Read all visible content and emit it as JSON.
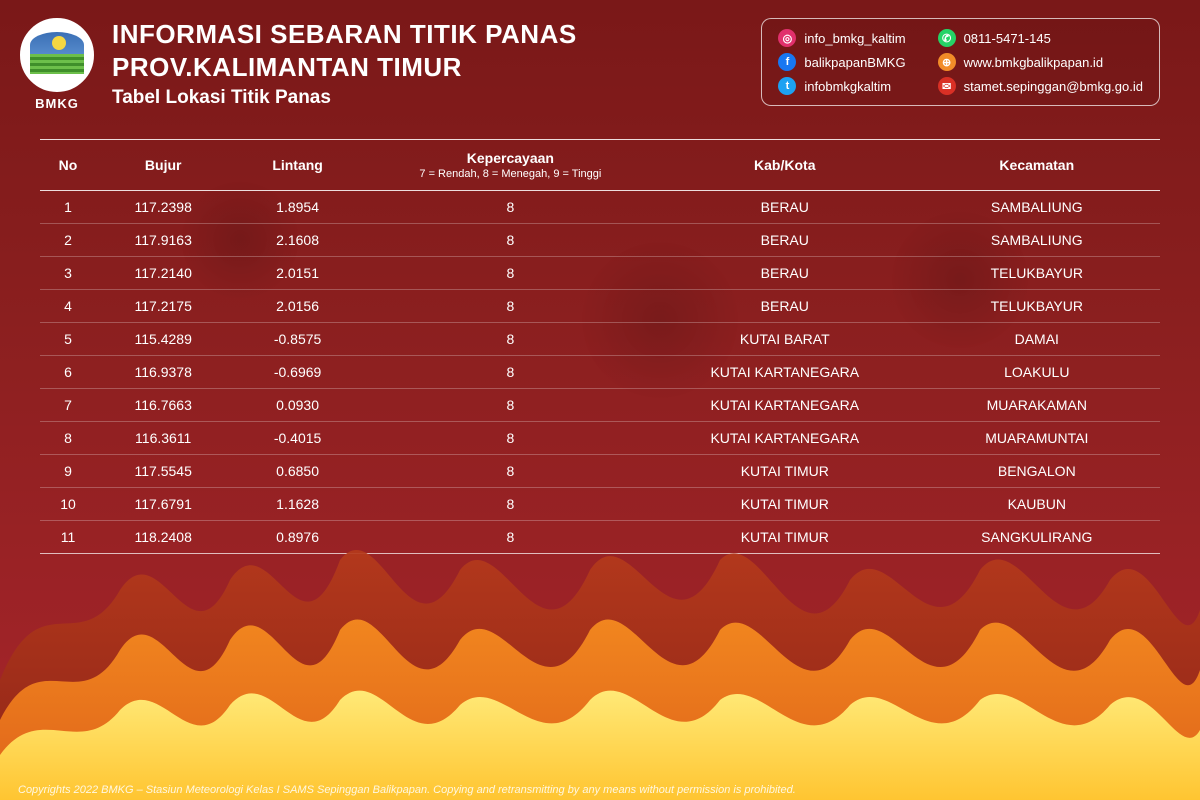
{
  "colors": {
    "bg_top": "#7a1818",
    "bg_mid": "#8b1f1f",
    "bg_bot": "#a8252b",
    "text": "#ffffff",
    "rule": "rgba(255,255,255,0.85)",
    "row_rule": "rgba(255,255,255,0.25)",
    "instagram": "#e1306c",
    "facebook": "#1877f2",
    "twitter": "#1da1f2",
    "whatsapp": "#25d366",
    "web": "#f28c28",
    "email": "#d93025",
    "fire_outer": "#b53a1b",
    "fire_mid": "#f58a1f",
    "fire_inner": "#ffd84a"
  },
  "logo": {
    "org": "BMKG"
  },
  "header": {
    "title_l1": "INFORMASI SEBARAN TITIK PANAS",
    "title_l2": "PROV.KALIMANTAN TIMUR",
    "subtitle": "Tabel Lokasi Titik Panas"
  },
  "contacts": [
    {
      "icon": "instagram",
      "label": "info_bmkg_kaltim"
    },
    {
      "icon": "whatsapp",
      "label": "0811-5471-145"
    },
    {
      "icon": "facebook",
      "label": "balikpapanBMKG"
    },
    {
      "icon": "web",
      "label": "www.bmkgbalikpapan.id"
    },
    {
      "icon": "twitter",
      "label": "infobmkgkaltim"
    },
    {
      "icon": "email",
      "label": "stamet.sepinggan@bmkg.go.id"
    }
  ],
  "table": {
    "columns": [
      {
        "key": "no",
        "label": "No",
        "sub": ""
      },
      {
        "key": "lon",
        "label": "Bujur",
        "sub": ""
      },
      {
        "key": "lat",
        "label": "Lintang",
        "sub": ""
      },
      {
        "key": "conf",
        "label": "Kepercayaan",
        "sub": "7 = Rendah, 8 = Menegah, 9 = Tinggi"
      },
      {
        "key": "kab",
        "label": "Kab/Kota",
        "sub": ""
      },
      {
        "key": "kec",
        "label": "Kecamatan",
        "sub": ""
      }
    ],
    "rows": [
      {
        "no": "1",
        "lon": "117.2398",
        "lat": "1.8954",
        "conf": "8",
        "kab": "BERAU",
        "kec": "SAMBALIUNG"
      },
      {
        "no": "2",
        "lon": "117.9163",
        "lat": "2.1608",
        "conf": "8",
        "kab": "BERAU",
        "kec": "SAMBALIUNG"
      },
      {
        "no": "3",
        "lon": "117.2140",
        "lat": "2.0151",
        "conf": "8",
        "kab": "BERAU",
        "kec": "TELUKBAYUR"
      },
      {
        "no": "4",
        "lon": "117.2175",
        "lat": "2.0156",
        "conf": "8",
        "kab": "BERAU",
        "kec": "TELUKBAYUR"
      },
      {
        "no": "5",
        "lon": "115.4289",
        "lat": "-0.8575",
        "conf": "8",
        "kab": "KUTAI BARAT",
        "kec": "DAMAI"
      },
      {
        "no": "6",
        "lon": "116.9378",
        "lat": "-0.6969",
        "conf": "8",
        "kab": "KUTAI KARTANEGARA",
        "kec": "LOAKULU"
      },
      {
        "no": "7",
        "lon": "116.7663",
        "lat": "0.0930",
        "conf": "8",
        "kab": "KUTAI KARTANEGARA",
        "kec": "MUARAKAMAN"
      },
      {
        "no": "8",
        "lon": "116.3611",
        "lat": "-0.4015",
        "conf": "8",
        "kab": "KUTAI KARTANEGARA",
        "kec": "MUARAMUNTAI"
      },
      {
        "no": "9",
        "lon": "117.5545",
        "lat": "0.6850",
        "conf": "8",
        "kab": "KUTAI TIMUR",
        "kec": "BENGALON"
      },
      {
        "no": "10",
        "lon": "117.6791",
        "lat": "1.1628",
        "conf": "8",
        "kab": "KUTAI TIMUR",
        "kec": "KAUBUN"
      },
      {
        "no": "11",
        "lon": "118.2408",
        "lat": "0.8976",
        "conf": "8",
        "kab": "KUTAI TIMUR",
        "kec": "SANGKULIRANG"
      }
    ]
  },
  "footer": "Copyrights 2022 BMKG – Stasiun Meteorologi Kelas I SAMS Sepinggan Balikpapan. Copying and retransmitting by any means without permission is prohibited.",
  "icon_glyphs": {
    "instagram": "◎",
    "facebook": "f",
    "twitter": "t",
    "whatsapp": "✆",
    "web": "⊕",
    "email": "✉"
  }
}
